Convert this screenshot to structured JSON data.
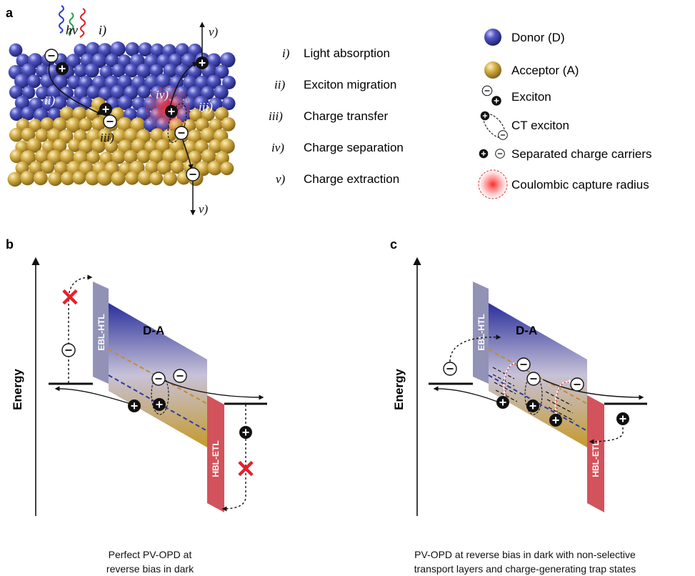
{
  "panels": {
    "a": {
      "letter": "a",
      "photon_label": "hν",
      "photon_step": "i)",
      "steps": [
        {
          "roman": "i)",
          "text": "Light absorption"
        },
        {
          "roman": "ii)",
          "text": "Exciton migration"
        },
        {
          "roman": "iii)",
          "text": "Charge transfer"
        },
        {
          "roman": "iv)",
          "text": "Charge separation"
        },
        {
          "roman": "v)",
          "text": "Charge extraction"
        }
      ],
      "diagram_marks": {
        "ii": "ii)",
        "iii_a": "iii)",
        "iii_b": "iii)",
        "iv": "iv)",
        "v_top": "v)",
        "v_bottom": "v)"
      },
      "legend": [
        {
          "key": "donor",
          "text": "Donor (D)",
          "color": "#3a3fa8"
        },
        {
          "key": "acceptor",
          "text": "Acceptor (A)",
          "color": "#c9a43a"
        },
        {
          "key": "exciton",
          "text": "Exciton"
        },
        {
          "key": "ct_exciton",
          "text": "CT exciton"
        },
        {
          "key": "carriers",
          "text": "Separated charge carriers"
        },
        {
          "key": "capture",
          "text": "Coulombic capture radius",
          "color": "#e8202a"
        }
      ]
    },
    "b": {
      "letter": "b",
      "y_axis": "Energy",
      "htl": "EBL-HTL",
      "active": "D-A",
      "etl": "HBL-ETL",
      "caption_line1": "Perfect PV-OPD at",
      "caption_line2": "reverse bias in dark"
    },
    "c": {
      "letter": "c",
      "y_axis": "Energy",
      "htl": "EBL-HTL",
      "active": "D-A",
      "etl": "HBL-ETL",
      "caption_line1": "PV-OPD at reverse bias in dark with non-selective",
      "caption_line2": "transport layers and charge-generating trap states"
    }
  },
  "symbols": {
    "minus": "−",
    "plus": "+",
    "block": "✕"
  },
  "colors": {
    "donor": "#3a3fa8",
    "acceptor": "#c9a43a",
    "htl": "#8f90b3",
    "etl": "#d4515a",
    "cross": "#e8202a",
    "homo_dash": "#2a3ba8",
    "lumo_dash": "#c98a2a"
  }
}
